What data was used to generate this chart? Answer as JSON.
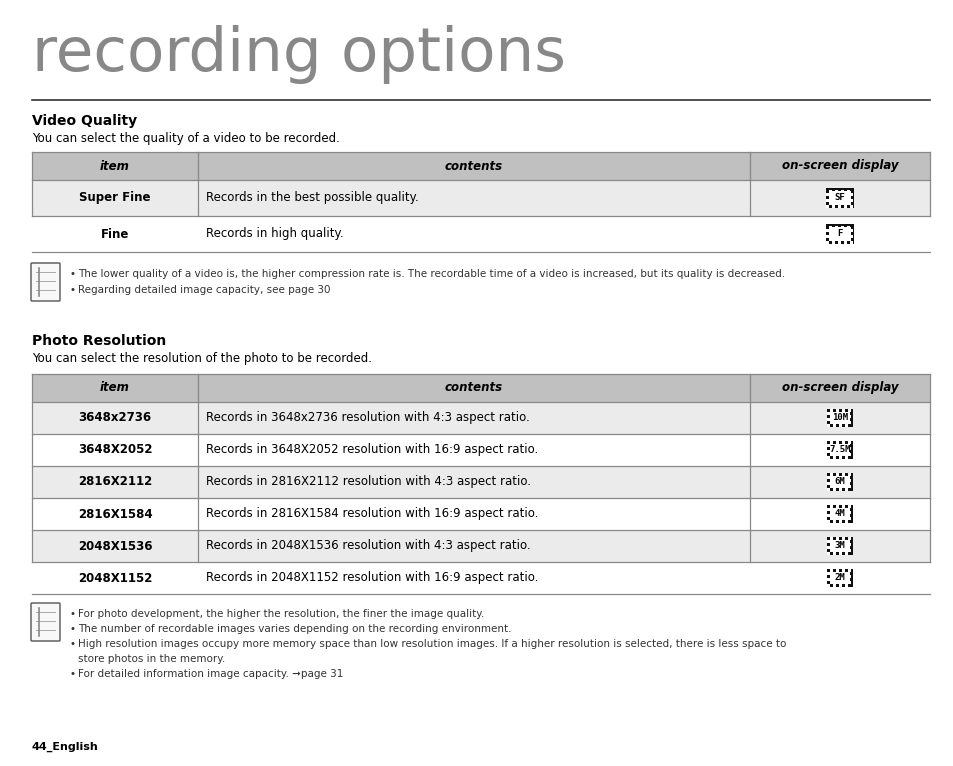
{
  "title": "recording options",
  "bg_color": "#ffffff",
  "section1_title": "Video Quality",
  "section1_desc": "You can select the quality of a video to be recorded.",
  "table1_header": [
    "item",
    "contents",
    "on-screen display"
  ],
  "table1_rows": [
    [
      "Super Fine",
      "Records in the best possible quality.",
      "SF"
    ],
    [
      "Fine",
      "Records in high quality.",
      "F"
    ]
  ],
  "table1_notes": [
    "The lower quality of a video is, the higher compression rate is. The recordable time of a video is increased, but its quality is decreased.",
    "Regarding detailed image capacity, see page 30"
  ],
  "section2_title": "Photo Resolution",
  "section2_desc": "You can select the resolution of the photo to be recorded.",
  "table2_header": [
    "item",
    "contents",
    "on-screen display"
  ],
  "table2_rows": [
    [
      "3648x2736",
      "Records in 3648x2736 resolution with 4:3 aspect ratio.",
      "10M"
    ],
    [
      "3648X2052",
      "Records in 3648X2052 resolution with 16:9 aspect ratio.",
      "7.5M"
    ],
    [
      "2816X2112",
      "Records in 2816X2112 resolution with 4:3 aspect ratio.",
      "6M"
    ],
    [
      "2816X1584",
      "Records in 2816X1584 resolution with 16:9 aspect ratio.",
      "4M"
    ],
    [
      "2048X1536",
      "Records in 2048X1536 resolution with 4:3 aspect ratio.",
      "3M"
    ],
    [
      "2048X1152",
      "Records in 2048X1152 resolution with 16:9 aspect ratio.",
      "2M"
    ]
  ],
  "table2_notes": [
    "For photo development, the higher the resolution, the finer the image quality.",
    "The number of recordable images varies depending on the recording environment.",
    "High resolution images occupy more memory space than low resolution images. If a higher resolution is selected, there is less space to\nstore photos in the memory.",
    "For detailed information image capacity. ➞page 31"
  ],
  "header_bg": "#c0c0c0",
  "row_bg_alt": "#ebebeb",
  "row_bg_white": "#ffffff",
  "border_color": "#888888",
  "footer_text": "44_English",
  "title_color": "#888888",
  "text_color": "#000000",
  "note_text_color": "#333333"
}
